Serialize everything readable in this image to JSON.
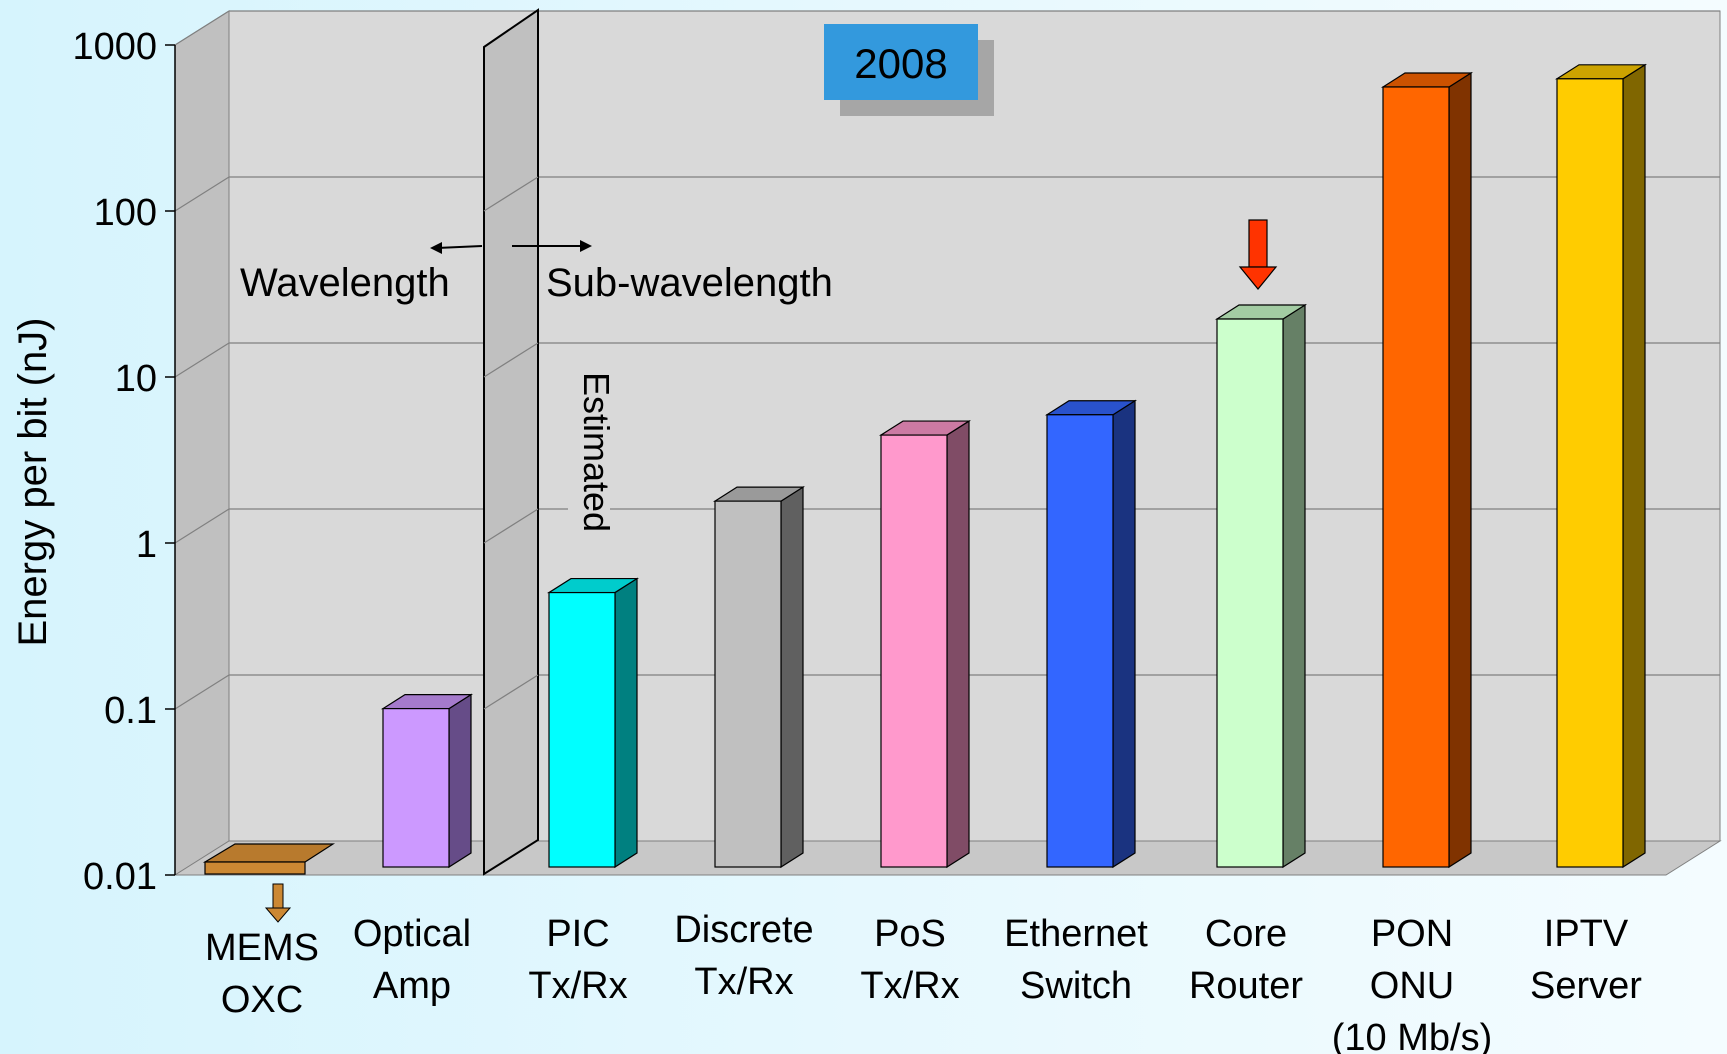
{
  "chart_data": {
    "type": "bar",
    "title": "2008",
    "ylabel": "Energy per bit (nJ)",
    "yscale": "log",
    "ylim": [
      0.01,
      1000
    ],
    "yticks": [
      "0.01",
      "0.1",
      "1",
      "10",
      "100",
      "1000"
    ],
    "grid": true,
    "categories": [
      [
        "MEMS",
        "OXC"
      ],
      [
        "Optical",
        "Amp"
      ],
      [
        "PIC",
        "Tx/Rx"
      ],
      [
        "Discrete",
        "Tx/Rx"
      ],
      [
        "PoS",
        "Tx/Rx"
      ],
      [
        "Ethernet",
        "Switch"
      ],
      [
        "Core",
        "Router"
      ],
      [
        "PON",
        "ONU",
        "(10 Mb/s)"
      ],
      [
        "IPTV",
        "Server"
      ]
    ],
    "values": [
      0.008,
      0.09,
      0.45,
      1.6,
      4,
      5.3,
      20,
      500,
      560
    ],
    "colors": [
      "#cc8833",
      "#cc99ff",
      "#00ffff",
      "#c0c0c0",
      "#ff99cc",
      "#3366ff",
      "#ccffcc",
      "#ff6600",
      "#ffcc00"
    ],
    "side_colors": [
      "#8a5a20",
      "#664c88",
      "#008080",
      "#606060",
      "#804c66",
      "#1a3380",
      "#668066",
      "#803300",
      "#806600"
    ],
    "top_colors": [
      "#b87a2d",
      "#a57acc",
      "#00cccc",
      "#9a9a9a",
      "#cc7aa3",
      "#2952cc",
      "#a3cca3",
      "#cc5200",
      "#cca300"
    ],
    "annotations": {
      "wavelength": "Wavelength",
      "sub_wavelength": "Sub-wavelength",
      "estimated": "Estimated"
    },
    "highlight": {
      "category_index": 6,
      "arrow_color": "#ff3300"
    },
    "below_axis_arrow": {
      "category_index": 0,
      "arrow_color": "#cc8833"
    }
  }
}
